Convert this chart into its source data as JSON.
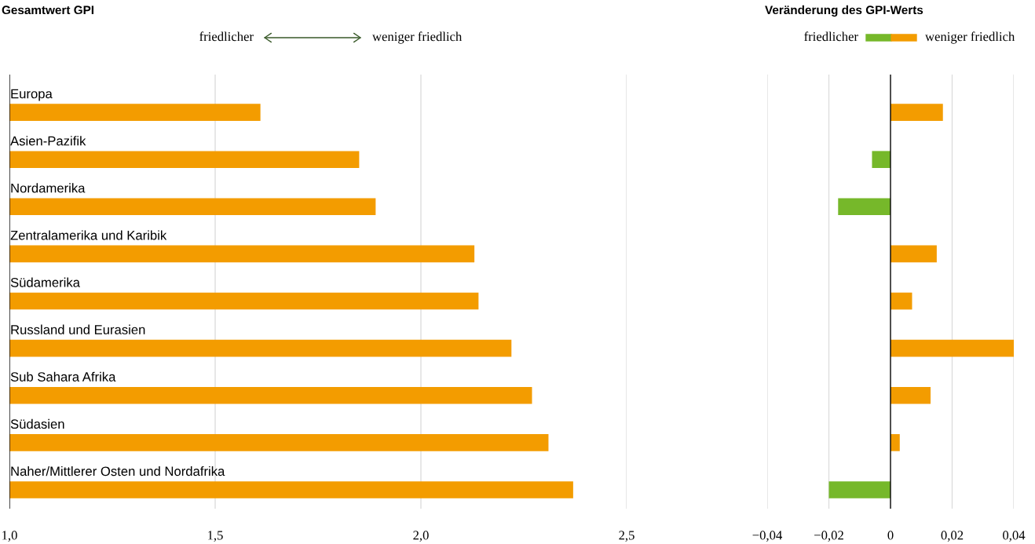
{
  "chart_data": [
    {
      "type": "bar",
      "orientation": "horizontal",
      "title": "Gesamtwert GPI",
      "categories": [
        "Europa",
        "Asien-Pazifik",
        "Nordamerika",
        "Zentralamerika und Karibik",
        "Südamerika",
        "Russland und Eurasien",
        "Sub Sahara Afrika",
        "Südasien",
        "Naher/Mittlerer Osten und Nordafrika"
      ],
      "values": [
        1.61,
        1.85,
        1.89,
        2.13,
        2.14,
        2.22,
        2.27,
        2.31,
        2.37
      ],
      "color": "#f39c00",
      "xlim": [
        1.0,
        2.5
      ],
      "xticks": [
        {
          "value": 1.0,
          "label": "1,0"
        },
        {
          "value": 1.5,
          "label": "1,5"
        },
        {
          "value": 2.0,
          "label": "2,0"
        },
        {
          "value": 2.5,
          "label": "2,5"
        }
      ],
      "grid": "x",
      "annotations": [
        "friedlicher",
        "weniger friedlich"
      ]
    },
    {
      "type": "bar",
      "orientation": "horizontal",
      "title": "Veränderung des GPI-Werts",
      "categories": [
        null,
        null,
        null,
        null,
        null,
        null,
        null,
        null,
        null
      ],
      "values": [
        0.017,
        -0.006,
        -0.017,
        0.015,
        0.007,
        0.04,
        0.013,
        0.003,
        -0.02
      ],
      "colors": [
        "#f39c00",
        "#76b82a",
        "#76b82a",
        "#f39c00",
        "#f39c00",
        "#f39c00",
        "#f39c00",
        "#f39c00",
        "#76b82a"
      ],
      "xlim": [
        -0.04,
        0.04
      ],
      "xticks": [
        {
          "value": -0.04,
          "label": "−0,04"
        },
        {
          "value": -0.02,
          "label": "−0,02"
        },
        0,
        {
          "value": 0.02,
          "label": "0,02"
        },
        {
          "value": 0.04,
          "label": "0,04"
        }
      ],
      "grid": "x",
      "tick_labels": "x",
      "annotations": [
        "friedlicher",
        "weniger friedlich"
      ]
    }
  ]
}
